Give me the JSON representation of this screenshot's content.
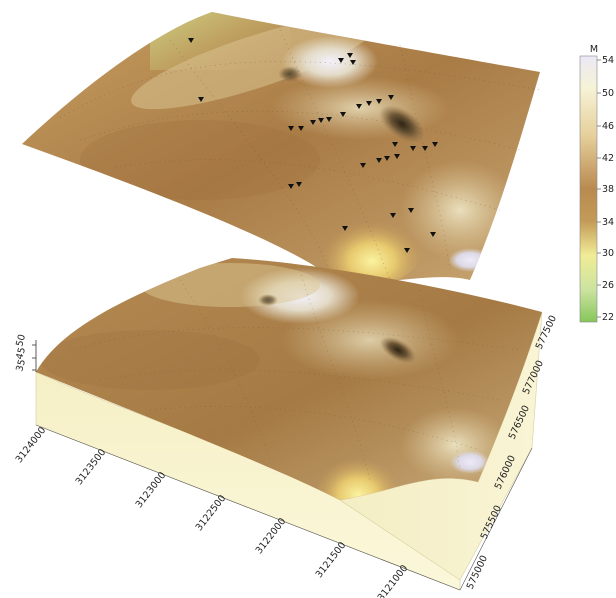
{
  "legend": {
    "unit": "M",
    "ticks": [
      "54",
      "50",
      "46",
      "42",
      "38",
      "34",
      "30",
      "26",
      "22"
    ],
    "colors": [
      "#e9e6f6",
      "#f6f1cc",
      "#e9d6a8",
      "#c9a06c",
      "#b9864d",
      "#c7a25a",
      "#ece890",
      "#c7e19a",
      "#8dc95e"
    ]
  },
  "z_axis_ticks": [
    "50",
    "45",
    "35"
  ],
  "x_axis_ticks": [
    "3124000",
    "3123500",
    "3123000",
    "3122500",
    "3122000",
    "3121500",
    "3121000"
  ],
  "y_axis_ticks": [
    "575000",
    "575500",
    "576000",
    "576500",
    "577000",
    "577500"
  ]
}
